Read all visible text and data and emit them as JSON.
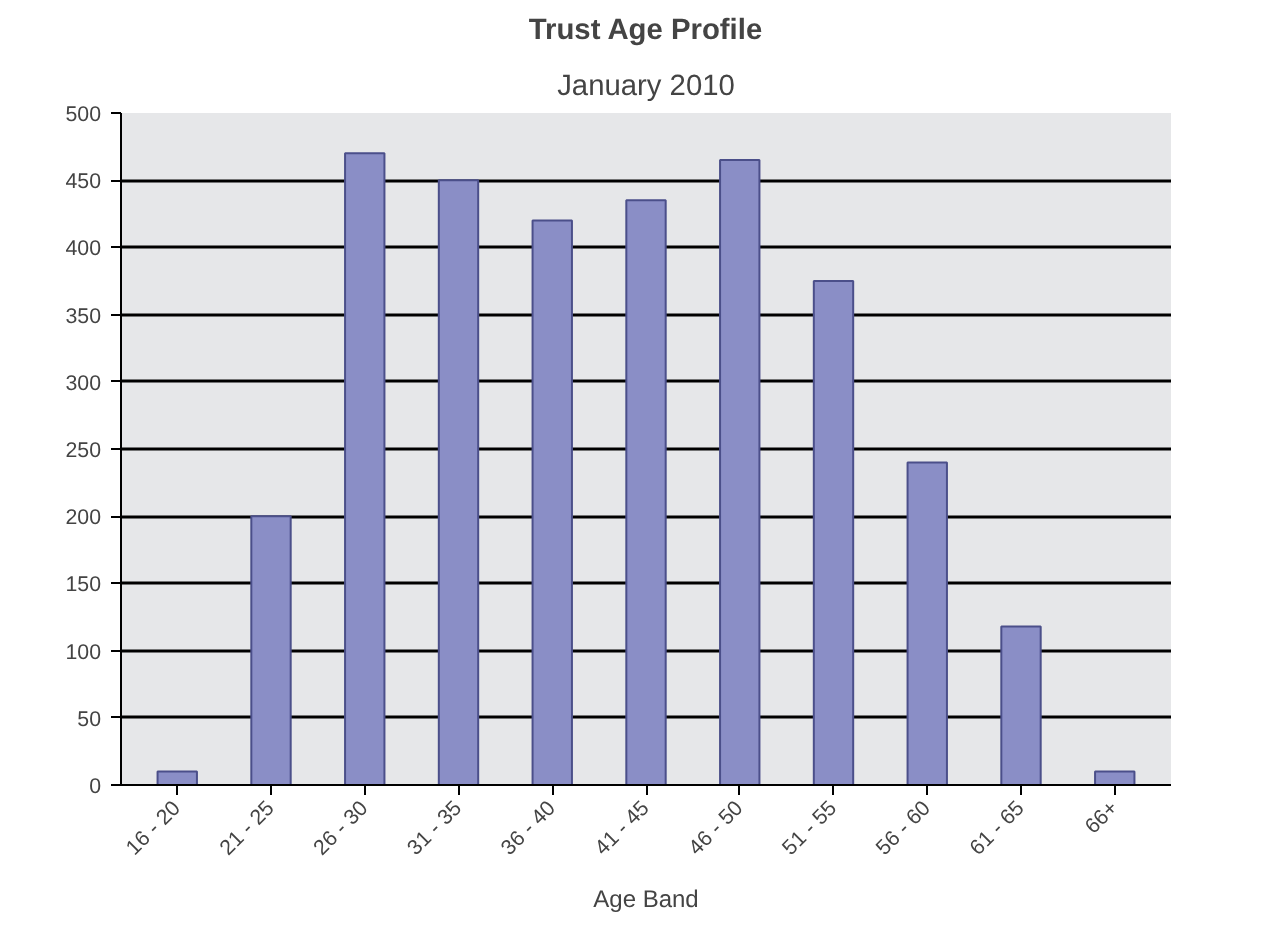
{
  "chart_data": {
    "type": "bar",
    "title": "Trust Age Profile",
    "subtitle": "January 2010",
    "xlabel": "Age Band",
    "categories": [
      "16 - 20",
      "21 - 25",
      "26 - 30",
      "31 - 35",
      "36 - 40",
      "41 - 45",
      "46 - 50",
      "51 - 55",
      "56 - 60",
      "61 - 65",
      "66+"
    ],
    "values": [
      10,
      200,
      470,
      450,
      420,
      435,
      465,
      375,
      240,
      118,
      10
    ],
    "color": "#8a8ec6",
    "ylim": [
      0,
      500
    ],
    "yticks": [
      0,
      50,
      100,
      150,
      200,
      250,
      300,
      350,
      400,
      450,
      500
    ],
    "grid": "y"
  }
}
